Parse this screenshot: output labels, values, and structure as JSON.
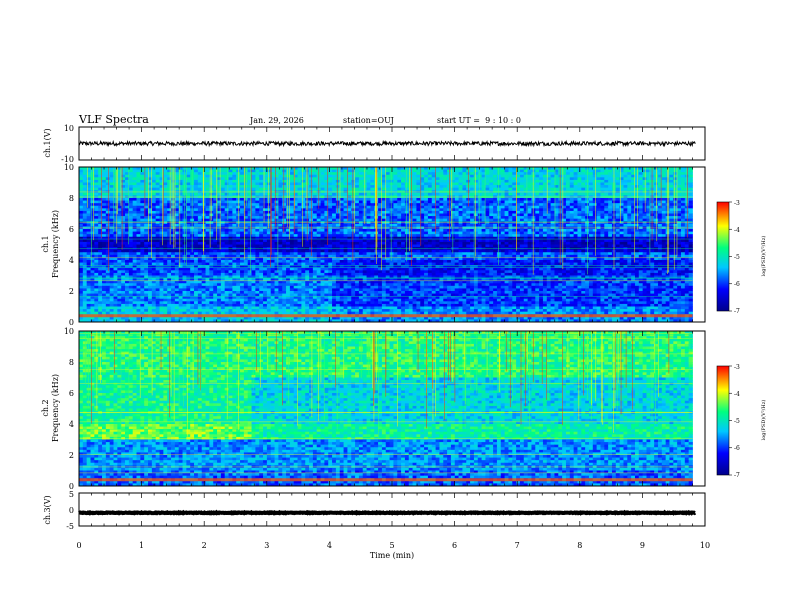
{
  "header": {
    "title": "VLF Spectra",
    "date": "Jan. 29, 2026",
    "station": "station=OUJ",
    "start_time": "start UT =  9 : 10 : 0"
  },
  "chart_data": [
    {
      "type": "line",
      "ylabel": "ch.1(V)",
      "ylim": [
        -10,
        10
      ],
      "yticks": [
        "10",
        "-10"
      ],
      "xlim": [
        0,
        10
      ],
      "series": [
        {
          "level": 0.0,
          "amplitude": 1.2
        }
      ]
    },
    {
      "type": "heatmap",
      "ylabel_line1": "ch.1",
      "ylabel_line2": "Frequency (kHz)",
      "ylim": [
        0,
        10
      ],
      "yticks": [
        "0",
        "2",
        "4",
        "6",
        "8",
        "10"
      ],
      "data_end_min": 9.8,
      "colorbar": {
        "label": "log(PSD)(V²/Hz)",
        "range": [
          -7,
          -3
        ],
        "ticks": [
          "-3",
          "-4",
          "-5",
          "-6",
          "-7"
        ]
      }
    },
    {
      "type": "heatmap",
      "ylabel_line1": "ch.2",
      "ylabel_line2": "Frequency (kHz)",
      "ylim": [
        0,
        10
      ],
      "yticks": [
        "0",
        "2",
        "4",
        "6",
        "8",
        "10"
      ],
      "data_end_min": 9.8,
      "colorbar": {
        "label": "log(PSD)(V²/Hz)",
        "range": [
          -7,
          -3
        ],
        "ticks": [
          "-3",
          "-4",
          "-5",
          "-6",
          "-7"
        ]
      }
    },
    {
      "type": "line",
      "ylabel": "ch.3(V)",
      "ylim": [
        -5,
        5
      ],
      "yticks": [
        "5",
        "0",
        "-5"
      ],
      "xlim": [
        0,
        10
      ],
      "series": [
        {
          "level": -1.0,
          "amplitude": 0.1
        }
      ]
    }
  ],
  "xaxis": {
    "label": "Time (min)",
    "ticks": [
      "0",
      "1",
      "2",
      "3",
      "4",
      "5",
      "6",
      "7",
      "8",
      "9",
      "10"
    ]
  },
  "colors": {
    "spectrogram_ramp": [
      "#00008b",
      "#0000ff",
      "#00c8ff",
      "#00ff80",
      "#ffff00",
      "#ff0000"
    ]
  }
}
